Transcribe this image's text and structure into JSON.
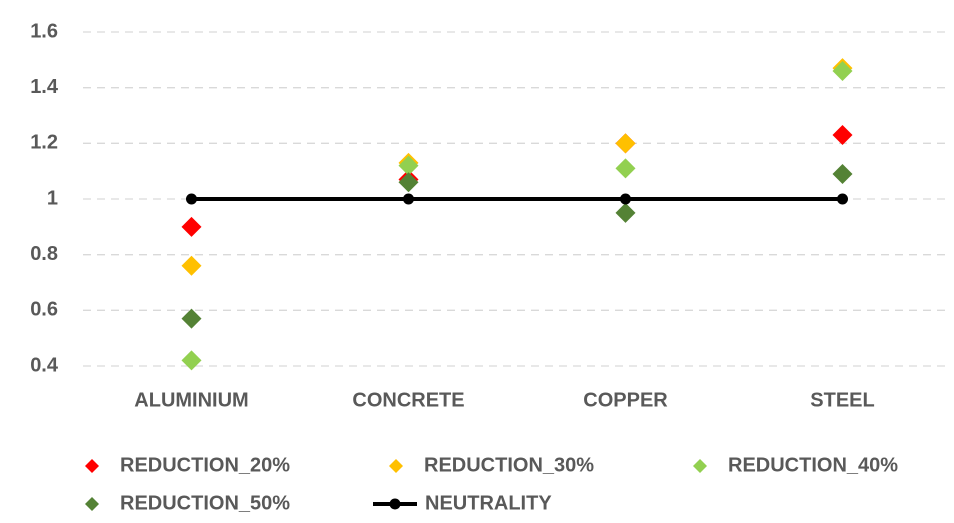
{
  "chart_data": {
    "type": "scatter",
    "categories": [
      "ALUMINIUM",
      "CONCRETE",
      "COPPER",
      "STEEL"
    ],
    "series": [
      {
        "name": "REDUCTION_20%",
        "color": "#ff0000",
        "marker": "diamond",
        "values": [
          0.9,
          1.07,
          1.2,
          1.23
        ]
      },
      {
        "name": "REDUCTION_30%",
        "color": "#ffc000",
        "marker": "diamond",
        "values": [
          0.76,
          1.13,
          1.2,
          1.47
        ]
      },
      {
        "name": "REDUCTION_40%",
        "color": "#92d050",
        "marker": "diamond",
        "values": [
          0.42,
          1.12,
          1.11,
          1.46
        ]
      },
      {
        "name": "REDUCTION_50%",
        "color": "#548235",
        "marker": "diamond",
        "values": [
          0.57,
          1.06,
          0.95,
          1.09
        ]
      },
      {
        "name": "NEUTRALITY",
        "color": "#000000",
        "marker": "line",
        "values": [
          1,
          1,
          1,
          1
        ]
      }
    ],
    "ylim": [
      0.4,
      1.6
    ],
    "yticks": [
      0.4,
      0.6,
      0.8,
      1,
      1.2,
      1.4,
      1.6
    ],
    "grid": true,
    "legend": "bottom"
  }
}
